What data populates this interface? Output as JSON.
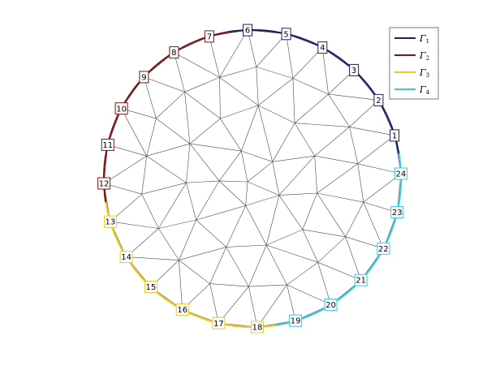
{
  "diagram": {
    "shape": "disk",
    "boundary_node_count": 24,
    "boundary_segments": [
      {
        "id": "gamma1",
        "symbol": "Γ",
        "subscript": "1",
        "color": "#1c1f6b",
        "nodes": [
          1,
          2,
          3,
          4,
          5,
          6
        ]
      },
      {
        "id": "gamma2",
        "symbol": "Γ",
        "subscript": "2",
        "color": "#7b1519",
        "nodes": [
          7,
          8,
          9,
          10,
          11,
          12
        ]
      },
      {
        "id": "gamma3",
        "symbol": "Γ",
        "subscript": "3",
        "color": "#f2c61f",
        "nodes": [
          13,
          14,
          15,
          16,
          17,
          18
        ]
      },
      {
        "id": "gamma4",
        "symbol": "Γ",
        "subscript": "4",
        "color": "#36c8e3",
        "nodes": [
          19,
          20,
          21,
          22,
          23,
          24
        ]
      }
    ],
    "node_labels": [
      "1",
      "2",
      "3",
      "4",
      "5",
      "6",
      "7",
      "8",
      "9",
      "10",
      "11",
      "12",
      "13",
      "14",
      "15",
      "16",
      "17",
      "18",
      "19",
      "20",
      "21",
      "22",
      "23",
      "24"
    ],
    "mesh_color": "#4a4a4a"
  }
}
